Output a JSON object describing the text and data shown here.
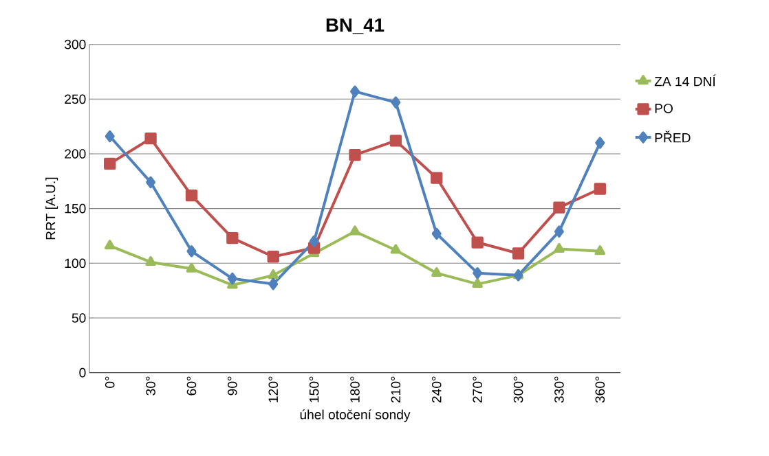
{
  "chart_data": {
    "type": "line",
    "title": "BN_41",
    "xlabel": "úhel otočení sondy",
    "ylabel": "RRT [A.U.]",
    "categories": [
      "0°",
      "30°",
      "60°",
      "90°",
      "120°",
      "150°",
      "180°",
      "210°",
      "240°",
      "270°",
      "300°",
      "330°",
      "360°"
    ],
    "series": [
      {
        "name": "ZA 14 DNÍ",
        "color": "#9bbb59",
        "marker": "triangle",
        "values": [
          116,
          101,
          95,
          80,
          89,
          109,
          129,
          112,
          91,
          81,
          89,
          113,
          111
        ]
      },
      {
        "name": "PO",
        "color": "#c0504d",
        "marker": "square",
        "values": [
          191,
          214,
          162,
          123,
          106,
          114,
          199,
          212,
          178,
          119,
          109,
          151,
          168
        ]
      },
      {
        "name": "PŘED",
        "color": "#4f81bd",
        "marker": "diamond",
        "values": [
          216,
          174,
          111,
          86,
          81,
          120,
          257,
          247,
          127,
          91,
          89,
          129,
          210
        ]
      }
    ],
    "ylim": [
      0,
      300
    ],
    "yticks": [
      0,
      50,
      100,
      150,
      200,
      250,
      300
    ],
    "grid": "y",
    "legend": "right",
    "line_style": "solid"
  }
}
